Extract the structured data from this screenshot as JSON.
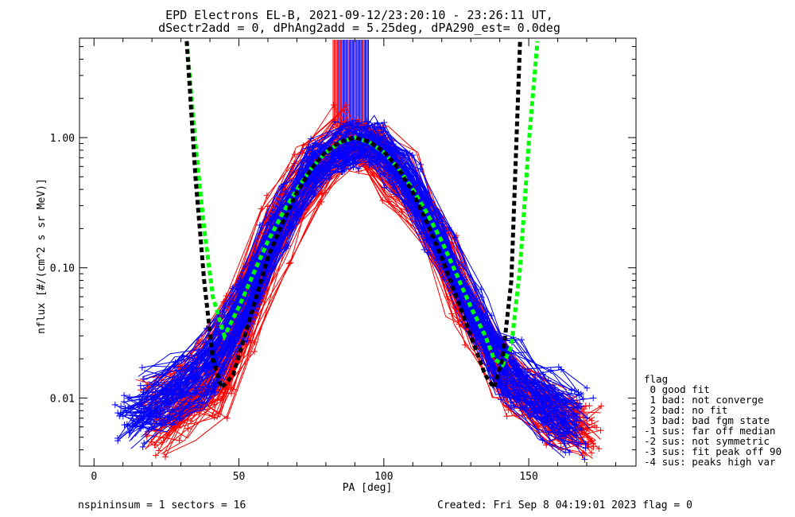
{
  "title_line1": "EPD Electrons EL-B, 2021-09-12/23:20:10 - 23:26:11 UT,",
  "title_line2": "dSectr2add = 0, dPhAng2add = 5.25deg, dPA290_est=   0.0deg",
  "footer": {
    "left": "nspininsum =  1  sectors = 16",
    "right": "Created: Fri Sep  8 04:19:01 2023   flag = 0"
  },
  "legend": {
    "title": "flag",
    "items": [
      " 0 good fit",
      " 1 bad: not converge",
      " 2 bad: no fit",
      " 3 bad: bad fgm state",
      "-1 sus: far off median",
      "-2 sus: not symmetric",
      "-3 sus: fit peak off 90",
      "-4 sus: peaks high var"
    ]
  },
  "colors": {
    "series_a": "#ff0000",
    "series_b": "#0000ff",
    "fit_green": "#00ff00",
    "fit_black": "#000000",
    "axes": "#000000"
  },
  "chart_data": {
    "type": "line",
    "xlabel": "PA [deg]",
    "ylabel": "nflux [#/(cm^2 s sr MeV)]",
    "xlim": [
      -5,
      187
    ],
    "ylim": [
      0.003,
      5.8
    ],
    "yscale": "log",
    "grid": false,
    "xticks": [
      0,
      50,
      100,
      150
    ],
    "xtick_labels": [
      "0",
      "50",
      "100",
      "150"
    ],
    "yticks": [
      0.01,
      0.1,
      1.0
    ],
    "ytick_labels": [
      "0.01",
      "0.10",
      "1.00"
    ],
    "series": [
      {
        "color": "red",
        "style": "thin lines with + markers",
        "curves": [
          {
            "x": [
              20,
              30,
              40,
              50,
              62,
              75,
              85,
              95,
              105,
              118,
              128,
              140,
              155,
              168
            ],
            "y": [
              0.006,
              0.008,
              0.012,
              0.04,
              0.2,
              0.5,
              0.9,
              0.85,
              0.5,
              0.18,
              0.05,
              0.015,
              0.008,
              0.006
            ]
          },
          {
            "x": [
              18,
              28,
              38,
              48,
              60,
              72,
              84,
              92,
              102,
              115,
              125,
              138,
              150,
              165
            ],
            "y": [
              0.01,
              0.012,
              0.02,
              0.05,
              0.25,
              0.6,
              1.2,
              0.8,
              0.45,
              0.2,
              0.06,
              0.02,
              0.012,
              0.008
            ]
          },
          {
            "x": [
              22,
              32,
              42,
              52,
              64,
              76,
              88,
              98,
              108,
              120,
              130,
              142,
              158,
              170
            ],
            "y": [
              0.005,
              0.007,
              0.01,
              0.03,
              0.15,
              0.45,
              0.85,
              0.9,
              0.55,
              0.15,
              0.04,
              0.012,
              0.006,
              0.005
            ]
          },
          {
            "x": [
              25,
              35,
              45,
              55,
              66,
              78,
              90,
              100,
              110,
              122,
              132,
              145,
              160,
              172
            ],
            "y": [
              0.008,
              0.011,
              0.015,
              0.06,
              0.22,
              0.55,
              0.95,
              0.75,
              0.4,
              0.12,
              0.035,
              0.01,
              0.007,
              0.006
            ]
          }
        ]
      },
      {
        "color": "blue",
        "style": "thin lines with + markers",
        "curves": [
          {
            "x": [
              12,
              25,
              38,
              50,
              62,
              75,
              86,
              96,
              106,
              118,
              130,
              142,
              155,
              165
            ],
            "y": [
              0.007,
              0.01,
              0.02,
              0.05,
              0.2,
              0.6,
              0.9,
              0.95,
              0.55,
              0.18,
              0.05,
              0.015,
              0.009,
              0.006
            ]
          },
          {
            "x": [
              15,
              28,
              40,
              52,
              64,
              76,
              88,
              97,
              108,
              120,
              132,
              144,
              156,
              166
            ],
            "y": [
              0.006,
              0.009,
              0.015,
              0.04,
              0.18,
              0.65,
              0.85,
              1.0,
              0.5,
              0.15,
              0.04,
              0.012,
              0.007,
              0.005
            ]
          },
          {
            "x": [
              18,
              30,
              42,
              54,
              66,
              78,
              90,
              98,
              110,
              122,
              134,
              146,
              158,
              168
            ],
            "y": [
              0.012,
              0.015,
              0.025,
              0.07,
              0.3,
              0.7,
              0.92,
              0.88,
              0.45,
              0.12,
              0.03,
              0.02,
              0.012,
              0.008
            ]
          },
          {
            "x": [
              10,
              22,
              36,
              48,
              60,
              74,
              86,
              94,
              104,
              116,
              128,
              140,
              152,
              164
            ],
            "y": [
              0.007,
              0.008,
              0.012,
              0.035,
              0.15,
              0.5,
              0.8,
              0.98,
              0.6,
              0.2,
              0.06,
              0.018,
              0.01,
              0.007
            ]
          }
        ]
      },
      {
        "color": "green",
        "style": "thick dashed fit",
        "x": [
          32,
          35,
          38,
          41,
          45,
          50,
          55,
          60,
          65,
          70,
          75,
          80,
          85,
          90,
          95,
          100,
          105,
          110,
          115,
          120,
          125,
          130,
          135,
          138,
          141,
          144,
          147,
          150,
          153
        ],
        "y": [
          5.5,
          0.9,
          0.2,
          0.06,
          0.03,
          0.05,
          0.09,
          0.16,
          0.26,
          0.4,
          0.58,
          0.77,
          0.92,
          1.0,
          0.92,
          0.77,
          0.58,
          0.4,
          0.26,
          0.16,
          0.09,
          0.05,
          0.03,
          0.02,
          0.018,
          0.025,
          0.1,
          0.9,
          5.5
        ]
      },
      {
        "color": "black",
        "style": "thick dashed fit",
        "x": [
          32,
          35,
          38,
          41,
          44,
          48,
          52,
          56,
          60,
          65,
          70,
          75,
          80,
          85,
          90,
          95,
          100,
          105,
          110,
          115,
          120,
          125,
          130,
          135,
          138,
          141,
          144,
          147
        ],
        "y": [
          5.5,
          0.5,
          0.08,
          0.02,
          0.012,
          0.015,
          0.03,
          0.06,
          0.12,
          0.22,
          0.38,
          0.58,
          0.78,
          0.93,
          1.0,
          0.93,
          0.78,
          0.58,
          0.38,
          0.22,
          0.12,
          0.06,
          0.03,
          0.015,
          0.012,
          0.02,
          0.08,
          5.5
        ]
      }
    ],
    "annotations": "vertical spike lines near PA 83-95 above peak"
  }
}
